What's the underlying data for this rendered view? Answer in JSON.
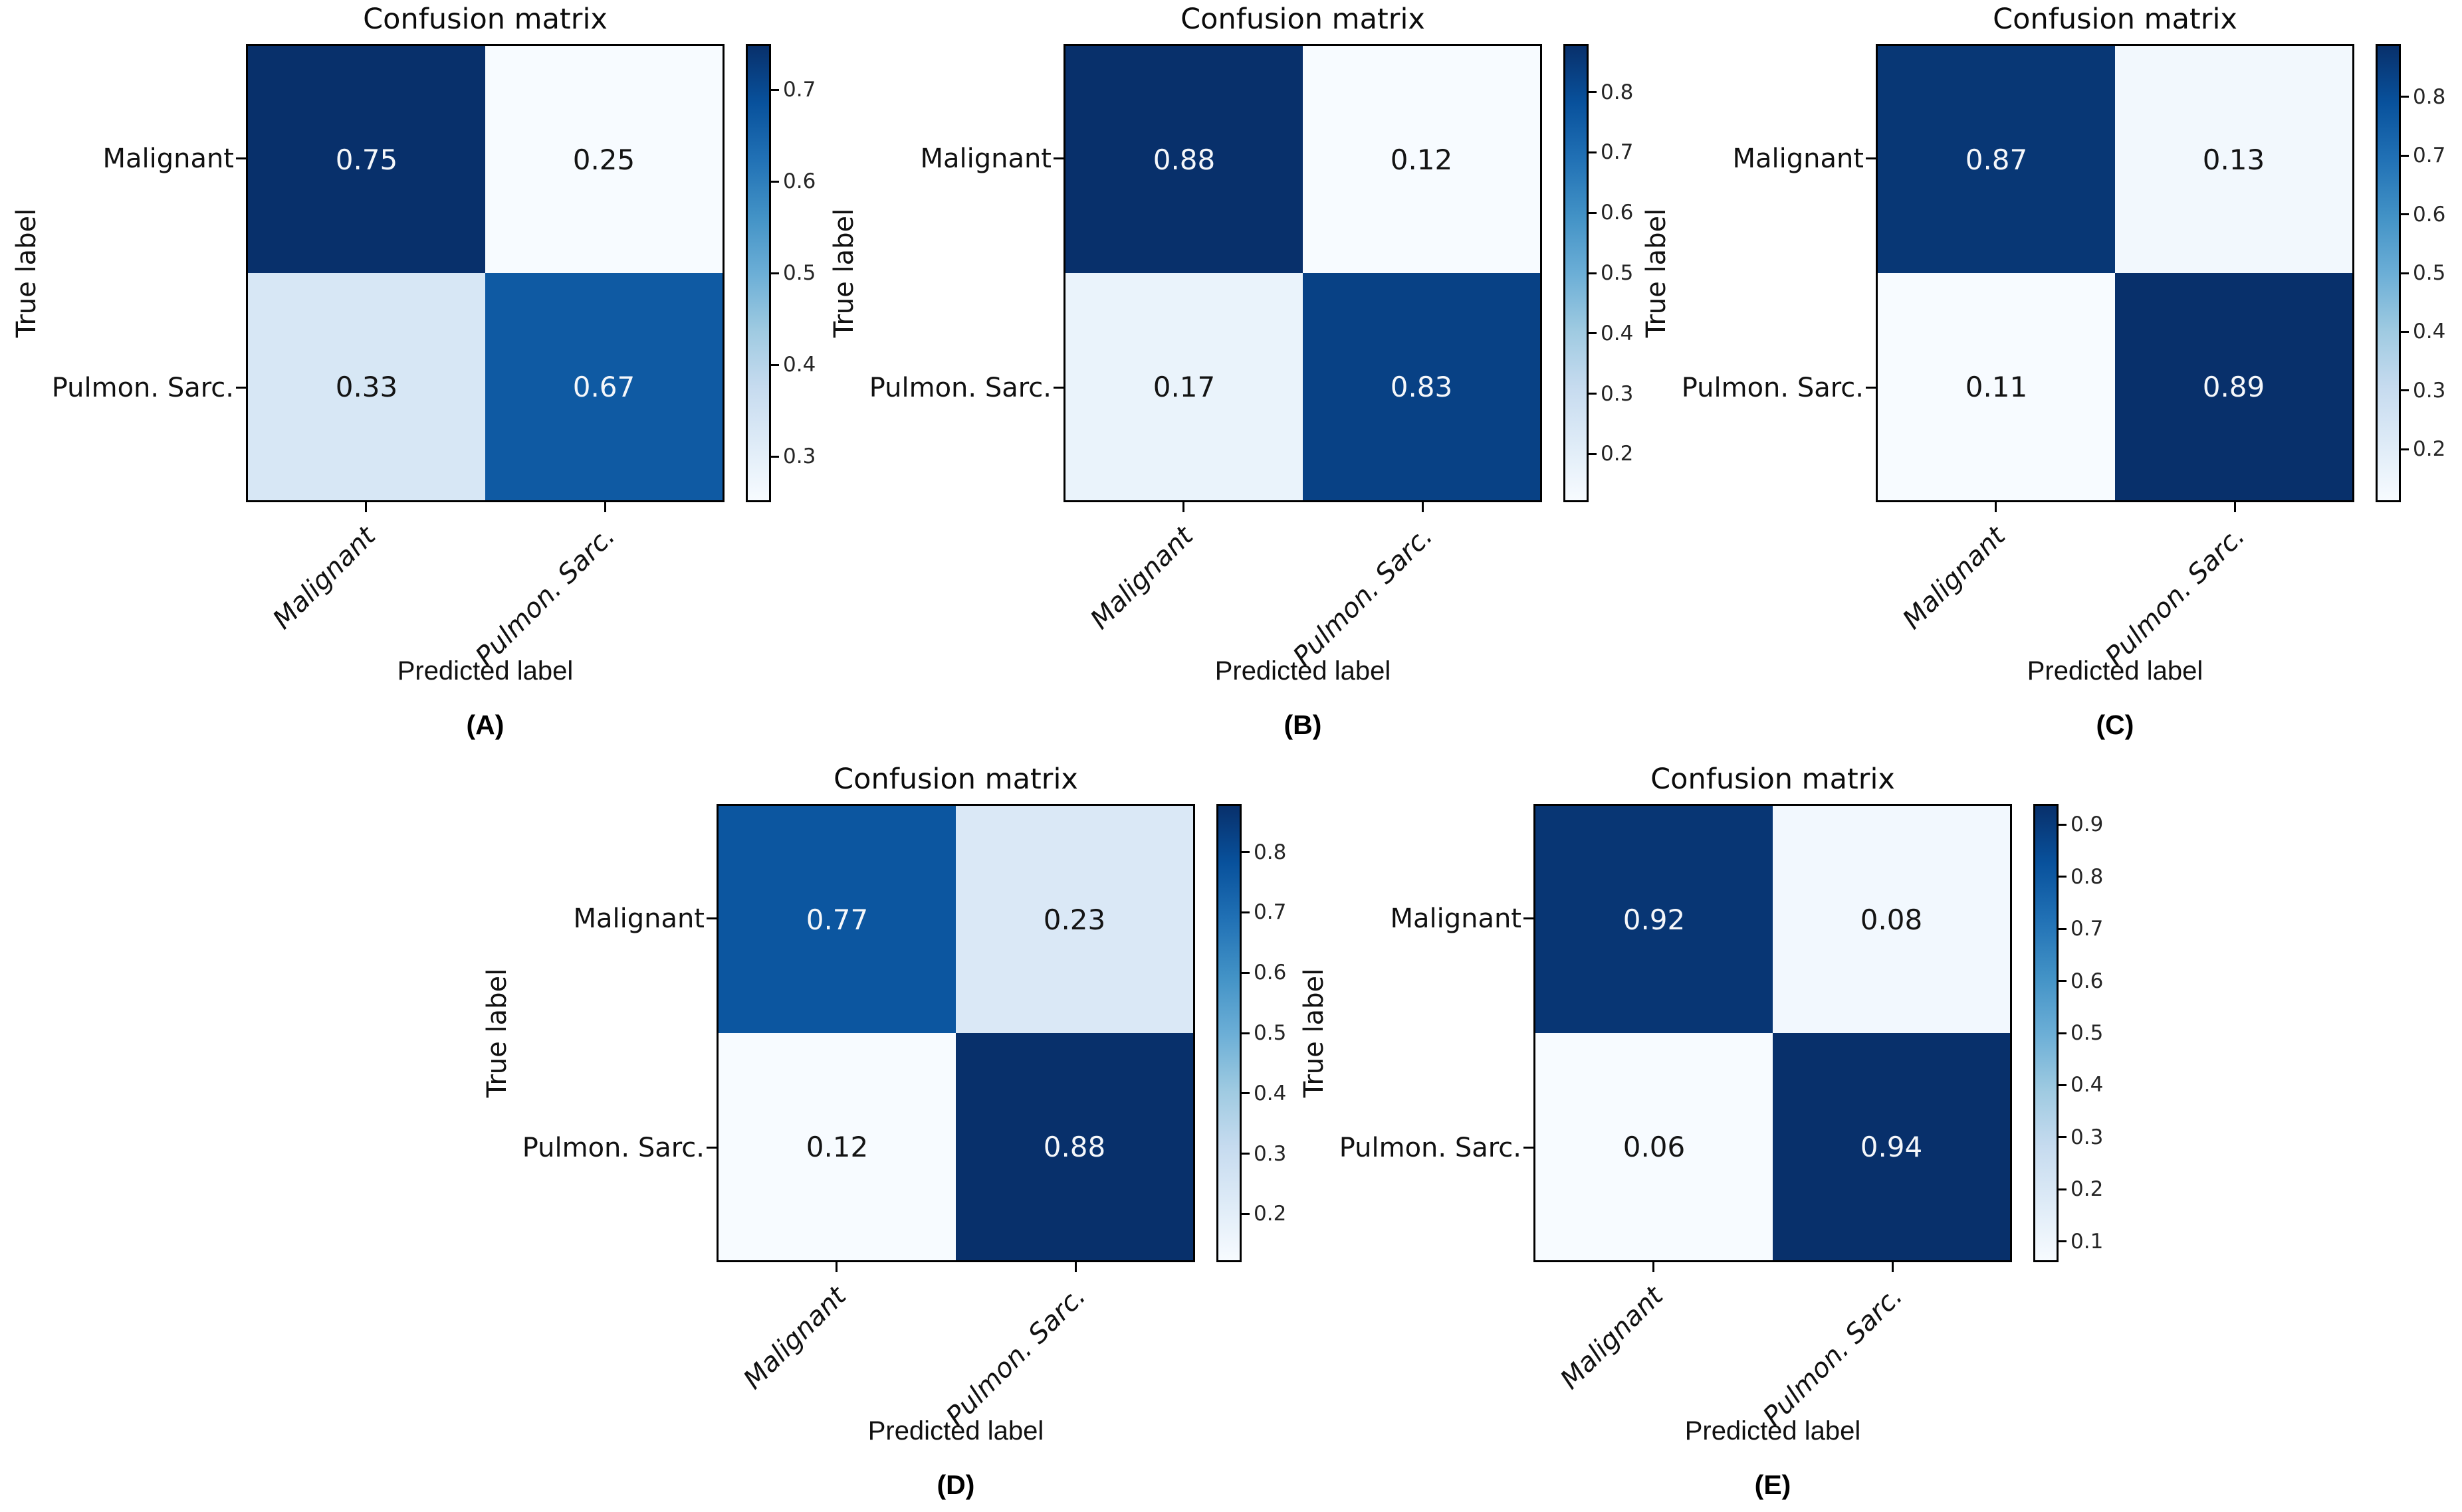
{
  "figure": {
    "title": "Confusion matrix",
    "xlabel": "Predicted label",
    "ylabel": "True label",
    "classes": [
      "Malignant",
      "Pulmon. Sarc."
    ],
    "colormap": "Blues",
    "colormap_anchors": [
      "#f7fbff",
      "#deebf7",
      "#c6dbef",
      "#9ecae1",
      "#6baed6",
      "#4292c6",
      "#2171b5",
      "#08519c",
      "#08306b"
    ],
    "dark_color": "#08306b",
    "light_color": "#f7fbff"
  },
  "chart_data": [
    {
      "type": "heatmap",
      "panel_label": "(A)",
      "title": "Confusion matrix",
      "xlabel": "Predicted label",
      "ylabel": "True label",
      "x_categories": [
        "Malignant",
        "Pulmon. Sarc."
      ],
      "y_categories": [
        "Malignant",
        "Pulmon. Sarc."
      ],
      "matrix": [
        [
          0.75,
          0.25
        ],
        [
          0.33,
          0.67
        ]
      ],
      "cell_labels": [
        [
          "0.75",
          "0.25"
        ],
        [
          "0.33",
          "0.67"
        ]
      ],
      "colorbar_ticks": [
        "0.3",
        "0.4",
        "0.5",
        "0.6",
        "0.7"
      ],
      "colorbar_range": [
        0.25,
        0.75
      ]
    },
    {
      "type": "heatmap",
      "panel_label": "(B)",
      "title": "Confusion matrix",
      "xlabel": "Predicted label",
      "ylabel": "True label",
      "x_categories": [
        "Malignant",
        "Pulmon. Sarc."
      ],
      "y_categories": [
        "Malignant",
        "Pulmon. Sarc."
      ],
      "matrix": [
        [
          0.88,
          0.12
        ],
        [
          0.17,
          0.83
        ]
      ],
      "cell_labels": [
        [
          "0.88",
          "0.12"
        ],
        [
          "0.17",
          "0.83"
        ]
      ],
      "colorbar_ticks": [
        "0.2",
        "0.3",
        "0.4",
        "0.5",
        "0.6",
        "0.7",
        "0.8"
      ],
      "colorbar_range": [
        0.12,
        0.88
      ]
    },
    {
      "type": "heatmap",
      "panel_label": "(C)",
      "title": "Confusion matrix",
      "xlabel": "Predicted label",
      "ylabel": "True label",
      "x_categories": [
        "Malignant",
        "Pulmon. Sarc."
      ],
      "y_categories": [
        "Malignant",
        "Pulmon. Sarc."
      ],
      "matrix": [
        [
          0.87,
          0.13
        ],
        [
          0.11,
          0.89
        ]
      ],
      "cell_labels": [
        [
          "0.87",
          "0.13"
        ],
        [
          "0.11",
          "0.89"
        ]
      ],
      "colorbar_ticks": [
        "0.2",
        "0.3",
        "0.4",
        "0.5",
        "0.6",
        "0.7",
        "0.8"
      ],
      "colorbar_range": [
        0.11,
        0.89
      ]
    },
    {
      "type": "heatmap",
      "panel_label": "(D)",
      "title": "Confusion matrix",
      "xlabel": "Predicted label",
      "ylabel": "True label",
      "x_categories": [
        "Malignant",
        "Pulmon. Sarc."
      ],
      "y_categories": [
        "Malignant",
        "Pulmon. Sarc."
      ],
      "matrix": [
        [
          0.77,
          0.23
        ],
        [
          0.12,
          0.88
        ]
      ],
      "cell_labels": [
        [
          "0.77",
          "0.23"
        ],
        [
          "0.12",
          "0.88"
        ]
      ],
      "colorbar_ticks": [
        "0.2",
        "0.3",
        "0.4",
        "0.5",
        "0.6",
        "0.7",
        "0.8"
      ],
      "colorbar_range": [
        0.12,
        0.88
      ]
    },
    {
      "type": "heatmap",
      "panel_label": "(E)",
      "title": "Confusion matrix",
      "xlabel": "Predicted label",
      "ylabel": "True label",
      "x_categories": [
        "Malignant",
        "Pulmon. Sarc."
      ],
      "y_categories": [
        "Malignant",
        "Pulmon. Sarc."
      ],
      "matrix": [
        [
          0.92,
          0.08
        ],
        [
          0.06,
          0.94
        ]
      ],
      "cell_labels": [
        [
          "0.92",
          "0.08"
        ],
        [
          "0.06",
          "0.94"
        ]
      ],
      "colorbar_ticks": [
        "0.1",
        "0.2",
        "0.3",
        "0.4",
        "0.5",
        "0.6",
        "0.7",
        "0.8",
        "0.9"
      ],
      "colorbar_range": [
        0.06,
        0.94
      ]
    }
  ]
}
